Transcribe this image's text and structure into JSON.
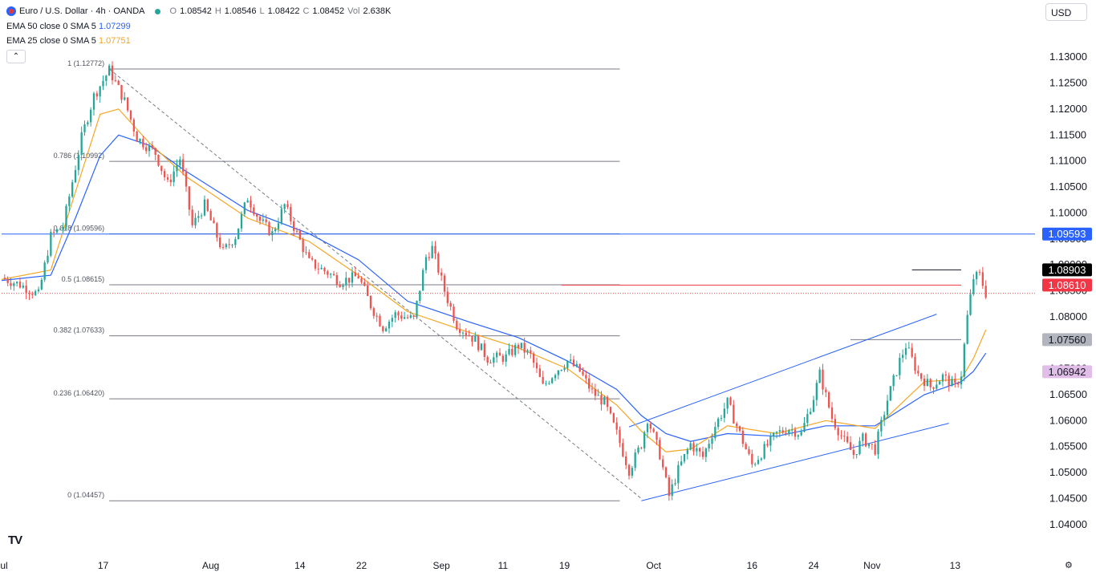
{
  "header": {
    "symbol": "Euro / U.S. Dollar · 4h · OANDA",
    "ohlc": [
      {
        "k": "O",
        "v": "1.08542"
      },
      {
        "k": "H",
        "v": "1.08546"
      },
      {
        "k": "L",
        "v": "1.08422"
      },
      {
        "k": "C",
        "v": "1.08452"
      }
    ],
    "vol_label": "Vol",
    "vol_value": "2.638K",
    "ema50": {
      "name": "EMA 50 close 0 SMA 5",
      "value": "1.07299"
    },
    "ema25": {
      "name": "EMA 25 close 0 SMA 5",
      "value": "1.07751"
    },
    "collapse_glyph": "⌃",
    "currency": "USD"
  },
  "colors": {
    "up": "#26a69a",
    "down": "#ef5350",
    "ema50": "#2962ff",
    "ema25": "#f5a623",
    "grid": "#787b86",
    "hline_blue": "#2962ff",
    "channel": "#2962ff",
    "tag_blue": "#2962ff",
    "tag_black": "#000000",
    "tag_red": "#f23645",
    "tag_gray": "#b2b5be",
    "tag_pink": "#e1bee7"
  },
  "chart_data": {
    "type": "candlestick",
    "title": "Euro / U.S. Dollar · 4h · OANDA",
    "ylim": [
      1.0375,
      1.1325
    ],
    "y_ticks": [
      "1.13000",
      "1.12500",
      "1.12000",
      "1.11500",
      "1.11000",
      "1.10500",
      "1.10000",
      "1.09500",
      "1.09000",
      "1.08500",
      "1.08000",
      "1.07500",
      "1.07000",
      "1.06500",
      "1.06000",
      "1.05500",
      "1.05000",
      "1.04500",
      "1.04000"
    ],
    "x_ticks": [
      {
        "t": 0.0,
        "label": "Jul"
      },
      {
        "t": 16.5,
        "label": "17"
      },
      {
        "t": 34.0,
        "label": "Aug"
      },
      {
        "t": 48.5,
        "label": "14"
      },
      {
        "t": 58.5,
        "label": "22"
      },
      {
        "t": 71.5,
        "label": "Sep"
      },
      {
        "t": 81.5,
        "label": "11"
      },
      {
        "t": 91.5,
        "label": "19"
      },
      {
        "t": 106.0,
        "label": "Oct"
      },
      {
        "t": 122.0,
        "label": "16"
      },
      {
        "t": 132.0,
        "label": "24"
      },
      {
        "t": 141.5,
        "label": "Nov"
      },
      {
        "t": 155.0,
        "label": "13"
      }
    ],
    "t_max": 168,
    "price_path": [
      [
        0,
        1.0875
      ],
      [
        3,
        1.0862
      ],
      [
        6,
        1.0842
      ],
      [
        8,
        1.0955
      ],
      [
        10,
        1.0975
      ],
      [
        13,
        1.1145
      ],
      [
        15,
        1.1225
      ],
      [
        17.5,
        1.1275
      ],
      [
        20,
        1.1215
      ],
      [
        22,
        1.1145
      ],
      [
        25,
        1.1115
      ],
      [
        27,
        1.1055
      ],
      [
        29,
        1.1105
      ],
      [
        31,
        1.0975
      ],
      [
        33,
        1.1015
      ],
      [
        36,
        1.0925
      ],
      [
        38,
        1.0955
      ],
      [
        40,
        1.103
      ],
      [
        42,
        1.0985
      ],
      [
        44,
        1.096
      ],
      [
        46,
        1.1015
      ],
      [
        48,
        1.096
      ],
      [
        50,
        1.0905
      ],
      [
        53,
        1.0885
      ],
      [
        55,
        1.0868
      ],
      [
        58,
        1.0878
      ],
      [
        60,
        1.0822
      ],
      [
        62,
        1.078
      ],
      [
        64,
        1.0805
      ],
      [
        67,
        1.0795
      ],
      [
        69,
        1.0915
      ],
      [
        70,
        1.0932
      ],
      [
        72,
        1.085
      ],
      [
        74,
        1.0785
      ],
      [
        77,
        1.0755
      ],
      [
        79,
        1.072
      ],
      [
        82,
        1.0722
      ],
      [
        84,
        1.0745
      ],
      [
        86,
        1.0725
      ],
      [
        88,
        1.0665
      ],
      [
        90,
        1.0695
      ],
      [
        92,
        1.0715
      ],
      [
        94,
        1.0695
      ],
      [
        96,
        1.0655
      ],
      [
        98,
        1.0635
      ],
      [
        100,
        1.0575
      ],
      [
        102,
        1.0505
      ],
      [
        104,
        1.0555
      ],
      [
        105,
        1.0605
      ],
      [
        107,
        1.0535
      ],
      [
        108.5,
        1.0455
      ],
      [
        110,
        1.0505
      ],
      [
        112,
        1.0555
      ],
      [
        114,
        1.053
      ],
      [
        116,
        1.059
      ],
      [
        118,
        1.0635
      ],
      [
        120,
        1.0575
      ],
      [
        122,
        1.0515
      ],
      [
        124,
        1.0545
      ],
      [
        126,
        1.0575
      ],
      [
        128,
        1.0585
      ],
      [
        130,
        1.0575
      ],
      [
        132,
        1.0645
      ],
      [
        133,
        1.069
      ],
      [
        135,
        1.0605
      ],
      [
        137,
        1.056
      ],
      [
        138.5,
        1.0535
      ],
      [
        140,
        1.0565
      ],
      [
        142,
        1.0545
      ],
      [
        144,
        1.064
      ],
      [
        146,
        1.0715
      ],
      [
        147,
        1.0745
      ],
      [
        149,
        1.069
      ],
      [
        151,
        1.0665
      ],
      [
        153,
        1.0685
      ],
      [
        155,
        1.0665
      ],
      [
        156,
        1.069
      ],
      [
        157,
        1.08
      ],
      [
        158,
        1.0875
      ],
      [
        159,
        1.088
      ],
      [
        160,
        1.0845
      ]
    ],
    "ema50_path": [
      [
        0,
        1.087
      ],
      [
        8,
        1.088
      ],
      [
        12,
        1.099
      ],
      [
        16,
        1.111
      ],
      [
        19,
        1.115
      ],
      [
        24,
        1.113
      ],
      [
        30,
        1.108
      ],
      [
        40,
        1.1005
      ],
      [
        50,
        1.096
      ],
      [
        58,
        1.091
      ],
      [
        66,
        1.083
      ],
      [
        76,
        1.079
      ],
      [
        84,
        1.076
      ],
      [
        92,
        1.0715
      ],
      [
        100,
        1.066
      ],
      [
        104,
        1.061
      ],
      [
        108,
        1.0575
      ],
      [
        112,
        1.056
      ],
      [
        118,
        1.0575
      ],
      [
        126,
        1.057
      ],
      [
        134,
        1.059
      ],
      [
        142,
        1.059
      ],
      [
        150,
        1.065
      ],
      [
        156,
        1.0675
      ],
      [
        158,
        1.0695
      ],
      [
        160,
        1.073
      ]
    ],
    "ema25_path": [
      [
        0,
        1.0872
      ],
      [
        8,
        1.089
      ],
      [
        12,
        1.104
      ],
      [
        16,
        1.119
      ],
      [
        19,
        1.12
      ],
      [
        24,
        1.1135
      ],
      [
        30,
        1.107
      ],
      [
        40,
        1.099
      ],
      [
        50,
        1.0945
      ],
      [
        58,
        1.088
      ],
      [
        66,
        1.081
      ],
      [
        76,
        1.077
      ],
      [
        84,
        1.074
      ],
      [
        92,
        1.07
      ],
      [
        100,
        1.063
      ],
      [
        104,
        1.058
      ],
      [
        108,
        1.054
      ],
      [
        112,
        1.0545
      ],
      [
        118,
        1.059
      ],
      [
        126,
        1.0575
      ],
      [
        134,
        1.06
      ],
      [
        142,
        1.0585
      ],
      [
        150,
        1.0675
      ],
      [
        156,
        1.068
      ],
      [
        158,
        1.072
      ],
      [
        160,
        1.0775
      ]
    ],
    "fibonacci": {
      "t_start": 17.5,
      "t_end": 100.5,
      "levels": [
        {
          "label": "1 (1.12772)",
          "price": 1.12772
        },
        {
          "label": "0.786 (1.10992)",
          "price": 1.10992
        },
        {
          "label": "0.618 (1.09596)",
          "price": 1.09596
        },
        {
          "label": "0.5 (1.08615)",
          "price": 1.08615
        },
        {
          "label": "0.382 (1.07633)",
          "price": 1.07633
        },
        {
          "label": "0.236 (1.06420)",
          "price": 1.0642
        },
        {
          "label": "0 (1.04457)",
          "price": 1.04457
        }
      ]
    },
    "diagonal": [
      [
        17.5,
        1.12772
      ],
      [
        104,
        1.045
      ]
    ],
    "channel": {
      "upper": [
        [
          102,
          1.0588
        ],
        [
          152,
          1.0805
        ]
      ],
      "lower": [
        [
          104,
          1.04457
        ],
        [
          154,
          1.0595
        ]
      ]
    },
    "hlines": [
      {
        "price": 1.09593,
        "t_start": 0,
        "t_end": 168,
        "color": "#2962ff"
      },
      {
        "price": 1.08903,
        "t_start": 148,
        "t_end": 156,
        "color": "#131722"
      },
      {
        "price": 1.0861,
        "t_start": 91,
        "t_end": 156,
        "color": "#f23645"
      },
      {
        "price": 1.0756,
        "t_start": 138,
        "t_end": 156,
        "color": "#787b86"
      }
    ],
    "current_price": 1.08452,
    "price_tags": [
      {
        "label": "1.09593",
        "price": 1.09593,
        "bg": "#2962ff",
        "fg": "#ffffff"
      },
      {
        "label": "1.08903",
        "price": 1.08903,
        "bg": "#000000",
        "fg": "#ffffff"
      },
      {
        "label": "1.08610",
        "price": 1.0861,
        "bg": "#f23645",
        "fg": "#ffffff"
      },
      {
        "label": "1.07560",
        "price": 1.0756,
        "bg": "#b2b5be",
        "fg": "#131722"
      },
      {
        "label": "1.06942",
        "price": 1.06942,
        "bg": "#e1bee7",
        "fg": "#131722"
      }
    ]
  },
  "footer": {
    "tv_logo": "TV",
    "settings_glyph": "⚙"
  }
}
